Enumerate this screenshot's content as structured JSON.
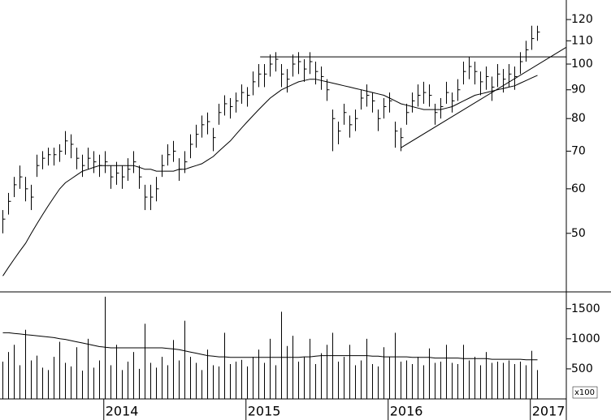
{
  "chart_data": {
    "type": "stock",
    "x": [
      2013.29,
      2013.33,
      2013.37,
      2013.41,
      2013.45,
      2013.49,
      2013.53,
      2013.57,
      2013.61,
      2013.65,
      2013.69,
      2013.73,
      2013.77,
      2013.81,
      2013.85,
      2013.89,
      2013.93,
      2013.97,
      2014.01,
      2014.05,
      2014.09,
      2014.13,
      2014.17,
      2014.21,
      2014.25,
      2014.29,
      2014.33,
      2014.37,
      2014.41,
      2014.45,
      2014.49,
      2014.53,
      2014.57,
      2014.61,
      2014.65,
      2014.69,
      2014.73,
      2014.77,
      2014.81,
      2014.85,
      2014.89,
      2014.93,
      2014.97,
      2015.01,
      2015.05,
      2015.09,
      2015.13,
      2015.17,
      2015.21,
      2015.25,
      2015.29,
      2015.33,
      2015.37,
      2015.41,
      2015.45,
      2015.49,
      2015.53,
      2015.57,
      2015.61,
      2015.65,
      2015.69,
      2015.73,
      2015.77,
      2015.81,
      2015.85,
      2015.89,
      2015.93,
      2015.97,
      2016.01,
      2016.05,
      2016.09,
      2016.13,
      2016.17,
      2016.21,
      2016.25,
      2016.29,
      2016.33,
      2016.37,
      2016.41,
      2016.45,
      2016.49,
      2016.53,
      2016.57,
      2016.61,
      2016.65,
      2016.69,
      2016.73,
      2016.77,
      2016.81,
      2016.85,
      2016.89,
      2016.93,
      2016.97,
      2017.01,
      2017.05
    ],
    "high": [
      55,
      59,
      63,
      66,
      63,
      61,
      69,
      70,
      71,
      71,
      72,
      76,
      75,
      71,
      69,
      71,
      70,
      69,
      70,
      66,
      67,
      66,
      68,
      70,
      66,
      61,
      61,
      63,
      69,
      72,
      73,
      68,
      70,
      75,
      78,
      81,
      82,
      77,
      85,
      88,
      87,
      89,
      92,
      91,
      97,
      100,
      100,
      104,
      105,
      100,
      98,
      104,
      105,
      102,
      105,
      101,
      99,
      94,
      83,
      79,
      85,
      81,
      83,
      90,
      92,
      89,
      83,
      87,
      89,
      79,
      77,
      85,
      89,
      92,
      93,
      92,
      85,
      87,
      93,
      89,
      94,
      101,
      103,
      101,
      97,
      99,
      95,
      100,
      98,
      100,
      99,
      105,
      110,
      117,
      117
    ],
    "low": [
      50,
      54,
      58,
      60,
      57,
      55,
      63,
      65,
      66,
      66,
      67,
      69,
      68,
      65,
      63,
      65,
      64,
      63,
      64,
      60,
      61,
      60,
      62,
      64,
      60,
      55,
      55,
      57,
      63,
      66,
      67,
      62,
      64,
      68,
      71,
      74,
      75,
      70,
      78,
      81,
      80,
      82,
      85,
      84,
      88,
      91,
      91,
      95,
      97,
      91,
      89,
      95,
      96,
      93,
      96,
      92,
      90,
      86,
      70,
      72,
      78,
      74,
      76,
      83,
      84,
      82,
      76,
      80,
      82,
      71,
      70,
      78,
      82,
      84,
      85,
      84,
      78,
      80,
      85,
      82,
      86,
      92,
      94,
      92,
      88,
      90,
      86,
      91,
      89,
      91,
      90,
      96,
      101,
      106,
      110
    ],
    "close": [
      53,
      57,
      61,
      63,
      60,
      58,
      66,
      68,
      69,
      69,
      70,
      73,
      72,
      68,
      66,
      68,
      67,
      66,
      67,
      63,
      64,
      63,
      65,
      67,
      63,
      58,
      58,
      60,
      66,
      69,
      70,
      65,
      67,
      72,
      75,
      78,
      79,
      74,
      82,
      85,
      84,
      86,
      89,
      88,
      93,
      96,
      96,
      100,
      102,
      96,
      94,
      100,
      101,
      98,
      101,
      97,
      95,
      90,
      80,
      76,
      82,
      78,
      80,
      87,
      88,
      86,
      80,
      84,
      86,
      76,
      74,
      82,
      86,
      88,
      89,
      88,
      82,
      84,
      89,
      86,
      90,
      97,
      99,
      97,
      93,
      95,
      91,
      96,
      94,
      96,
      95,
      101,
      106,
      111,
      114
    ],
    "moving_average": [
      42,
      43.5,
      45,
      46.5,
      48,
      50,
      52,
      54,
      56,
      58,
      60,
      61.5,
      62.5,
      63.5,
      64.5,
      65,
      65.5,
      66,
      66,
      66,
      66,
      66,
      66,
      66,
      65.5,
      65,
      65,
      64.5,
      64.5,
      64.5,
      64.5,
      65,
      65,
      65.5,
      66,
      66.5,
      67.5,
      68.5,
      70,
      71.5,
      73,
      75,
      77,
      79,
      81,
      83,
      85,
      87,
      88.5,
      90,
      91,
      92,
      93,
      93.5,
      94,
      94,
      93.5,
      93,
      92.5,
      92,
      91.5,
      91,
      90.5,
      90,
      89.5,
      89,
      88.5,
      88,
      87,
      86,
      85,
      84.5,
      84,
      83.5,
      83,
      83,
      83,
      83,
      83.5,
      84,
      85,
      86,
      87,
      88,
      88.5,
      89,
      89.5,
      90,
      90.5,
      91,
      91.5,
      92.5,
      93.5,
      94.5,
      95.5
    ],
    "volume": [
      620,
      780,
      900,
      560,
      1150,
      640,
      720,
      520,
      480,
      700,
      950,
      600,
      540,
      860,
      470,
      1000,
      520,
      640,
      1700,
      560,
      900,
      480,
      620,
      780,
      500,
      1250,
      600,
      520,
      700,
      560,
      980,
      640,
      1300,
      700,
      600,
      480,
      820,
      560,
      540,
      1100,
      580,
      620,
      650,
      540,
      700,
      820,
      600,
      1000,
      560,
      1450,
      880,
      1050,
      620,
      700,
      1000,
      580,
      760,
      900,
      1100,
      620,
      700,
      900,
      560,
      640,
      1000,
      580,
      540,
      860,
      700,
      1100,
      620,
      640,
      580,
      700,
      560,
      840,
      600,
      620,
      900,
      600,
      580,
      900,
      640,
      700,
      560,
      780,
      600,
      620,
      600,
      640,
      580,
      620,
      560,
      800,
      480
    ],
    "volume_average": [
      1100,
      1100,
      1090,
      1080,
      1070,
      1060,
      1050,
      1040,
      1030,
      1020,
      1000,
      990,
      970,
      950,
      930,
      910,
      890,
      870,
      860,
      850,
      850,
      850,
      850,
      850,
      850,
      850,
      850,
      850,
      850,
      840,
      830,
      820,
      800,
      780,
      760,
      740,
      720,
      710,
      700,
      700,
      690,
      690,
      690,
      690,
      690,
      690,
      690,
      690,
      690,
      690,
      690,
      690,
      690,
      700,
      700,
      710,
      720,
      720,
      720,
      720,
      720,
      720,
      720,
      720,
      720,
      710,
      710,
      700,
      700,
      700,
      700,
      700,
      690,
      690,
      690,
      690,
      680,
      680,
      680,
      680,
      680,
      670,
      670,
      670,
      670,
      670,
      660,
      660,
      660,
      660,
      660,
      660,
      650,
      650,
      650
    ],
    "trendlines": [
      {
        "x": [
          2015.1,
          2017.253
        ],
        "values": [
          103,
          103
        ]
      },
      {
        "x": [
          2016.09,
          2017.25
        ],
        "values": [
          71,
          107
        ]
      }
    ],
    "xlim": [
      2013.27,
      2017.253
    ],
    "xticks": [
      2014,
      2015,
      2016,
      2017
    ],
    "ylim": [
      39.6,
      130
    ],
    "yticks": [
      50,
      60,
      70,
      80,
      90,
      100,
      110,
      120
    ],
    "log_scale": true,
    "volume_ylim": [
      0,
      1780
    ],
    "volume_yticks": [
      500,
      1000,
      1500
    ],
    "volume_unit": "x100",
    "color": "#000000"
  }
}
